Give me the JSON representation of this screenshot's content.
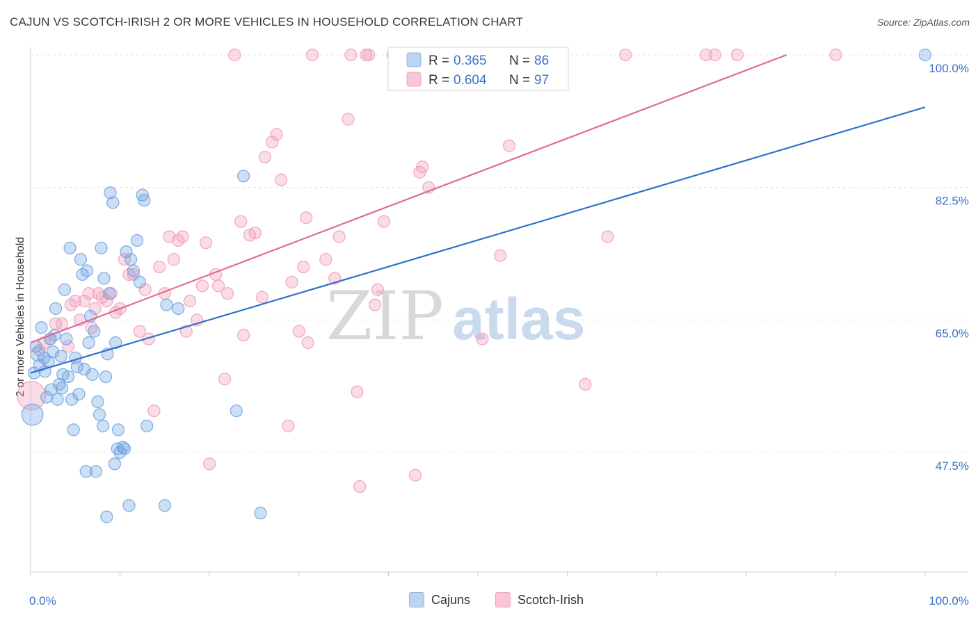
{
  "title": "CAJUN VS SCOTCH-IRISH 2 OR MORE VEHICLES IN HOUSEHOLD CORRELATION CHART",
  "source": "Source: ZipAtlas.com",
  "watermark": {
    "zip": "ZIP",
    "atlas": "atlas"
  },
  "colors": {
    "cajun": "#6fa3e0",
    "cajun_line": "#2f6fcc",
    "scotch": "#f29bb8",
    "scotch_line": "#e06a93",
    "axis_text": "#3a72c8"
  },
  "legend": {
    "cajun": {
      "r_label": "R =",
      "r_value": "0.365",
      "n_label": "N =",
      "n_value": "86"
    },
    "scotch": {
      "r_label": "R =",
      "r_value": "0.604",
      "n_label": "N =",
      "n_value": "97"
    }
  },
  "bottom_legend": {
    "cajun": "Cajuns",
    "scotch": "Scotch-Irish"
  },
  "chart_data": {
    "type": "scatter",
    "title": "CAJUN VS SCOTCH-IRISH 2 OR MORE VEHICLES IN HOUSEHOLD CORRELATION CHART",
    "xlabel": "",
    "ylabel": "2 or more Vehicles in Household",
    "xlim": [
      0,
      100
    ],
    "ylim": [
      31.5,
      101.5
    ],
    "x_tick_labels": [
      "0.0%",
      "100.0%"
    ],
    "y_ticks": [
      47.5,
      65.0,
      82.5,
      100.0
    ],
    "y_tick_labels": [
      "47.5%",
      "65.0%",
      "82.5%",
      "100.0%"
    ],
    "series": [
      {
        "name": "Cajuns",
        "trend": {
          "x": [
            0,
            100
          ],
          "y": [
            58.0,
            93.1
          ]
        },
        "points": [
          [
            0.2,
            52.5,
            1.8
          ],
          [
            0.4,
            58,
            1.0
          ],
          [
            0.6,
            61.5,
            1.0
          ],
          [
            0.8,
            60.5,
            1.2
          ],
          [
            1.0,
            59,
            1.0
          ],
          [
            1.2,
            64,
            1.0
          ],
          [
            1.5,
            60,
            1.0
          ],
          [
            1.6,
            58.2,
            1.0
          ],
          [
            1.8,
            54.8,
            1.0
          ],
          [
            2.0,
            59.5,
            1.0
          ],
          [
            2.2,
            62.5,
            1.0
          ],
          [
            2.3,
            55.8,
            1.0
          ],
          [
            2.5,
            60.8,
            1.0
          ],
          [
            2.7,
            63,
            1.0
          ],
          [
            2.8,
            66.5,
            1.0
          ],
          [
            3.0,
            54.5,
            1.0
          ],
          [
            3.2,
            56.5,
            1.0
          ],
          [
            3.4,
            60.2,
            1.0
          ],
          [
            3.5,
            56,
            1.0
          ],
          [
            3.6,
            57.8,
            1.0
          ],
          [
            3.8,
            69,
            1.0
          ],
          [
            4.0,
            62.5,
            1.0
          ],
          [
            4.2,
            57.5,
            1.0
          ],
          [
            4.4,
            74.5,
            1.0
          ],
          [
            4.6,
            54.5,
            1.0
          ],
          [
            4.8,
            50.5,
            1.0
          ],
          [
            5.0,
            60,
            1.0
          ],
          [
            5.2,
            58.8,
            1.0
          ],
          [
            5.4,
            55.2,
            1.0
          ],
          [
            5.6,
            73,
            1.0
          ],
          [
            5.8,
            71,
            1.0
          ],
          [
            6.0,
            58.5,
            1.0
          ],
          [
            6.2,
            45,
            1.0
          ],
          [
            6.3,
            71.5,
            1.0
          ],
          [
            6.5,
            62,
            1.0
          ],
          [
            6.7,
            65.5,
            1.0
          ],
          [
            6.9,
            57.8,
            1.0
          ],
          [
            7.1,
            63.5,
            1.0
          ],
          [
            7.3,
            45,
            1.0
          ],
          [
            7.5,
            54.2,
            1.0
          ],
          [
            7.7,
            52.5,
            1.0
          ],
          [
            7.9,
            74.5,
            1.0
          ],
          [
            8.1,
            51,
            1.0
          ],
          [
            8.2,
            70.5,
            1.0
          ],
          [
            8.4,
            57.5,
            1.0
          ],
          [
            8.5,
            39,
            1.0
          ],
          [
            8.6,
            60.5,
            1.0
          ],
          [
            8.8,
            68.5,
            1.0
          ],
          [
            8.9,
            81.8,
            1.0
          ],
          [
            9.2,
            80.5,
            1.0
          ],
          [
            9.4,
            46,
            1.0
          ],
          [
            9.5,
            62,
            1.0
          ],
          [
            9.7,
            48,
            1.0
          ],
          [
            9.8,
            50.5,
            1.0
          ],
          [
            10.0,
            47.5,
            1.0
          ],
          [
            10.3,
            48.2,
            1.0
          ],
          [
            10.5,
            48,
            1.0
          ],
          [
            10.7,
            74,
            1.0
          ],
          [
            11.0,
            40.5,
            1.0
          ],
          [
            11.2,
            73,
            1.0
          ],
          [
            11.5,
            71.5,
            1.0
          ],
          [
            11.9,
            75.5,
            1.0
          ],
          [
            12.2,
            70,
            1.0
          ],
          [
            12.5,
            81.5,
            1.0
          ],
          [
            12.7,
            80.8,
            1.0
          ],
          [
            13.0,
            51,
            1.0
          ],
          [
            15.0,
            40.5,
            1.0
          ],
          [
            15.2,
            67,
            1.0
          ],
          [
            16.5,
            66.5,
            1.0
          ],
          [
            23.0,
            53,
            1.0
          ],
          [
            23.8,
            84,
            1.0
          ],
          [
            25.7,
            39.5,
            1.0
          ],
          [
            100,
            100,
            1.0
          ]
        ]
      },
      {
        "name": "Scotch-Irish",
        "trend": {
          "x": [
            0,
            84.5
          ],
          "y": [
            62.0,
            100.0
          ]
        },
        "points": [
          [
            0.1,
            55,
            2.4
          ],
          [
            1.0,
            61,
            1.0
          ],
          [
            1.5,
            62,
            1.0
          ],
          [
            2.2,
            62.5,
            1.0
          ],
          [
            2.8,
            64.5,
            1.0
          ],
          [
            3.5,
            64.5,
            1.0
          ],
          [
            4.2,
            61.5,
            1.0
          ],
          [
            4.5,
            67,
            1.0
          ],
          [
            5.0,
            67.5,
            1.0
          ],
          [
            5.5,
            65,
            1.0
          ],
          [
            6.0,
            67.5,
            1.0
          ],
          [
            6.5,
            68.5,
            1.0
          ],
          [
            6.8,
            64,
            1.0
          ],
          [
            7.2,
            66.5,
            1.0
          ],
          [
            7.6,
            68.5,
            1.0
          ],
          [
            8.0,
            68,
            1.0
          ],
          [
            8.5,
            67.5,
            1.0
          ],
          [
            9.0,
            68.5,
            1.0
          ],
          [
            9.5,
            66,
            1.0
          ],
          [
            10.0,
            66.5,
            1.0
          ],
          [
            10.5,
            73,
            1.0
          ],
          [
            11.0,
            71,
            1.0
          ],
          [
            11.5,
            71,
            1.0
          ],
          [
            12.2,
            63.5,
            1.0
          ],
          [
            12.8,
            69,
            1.0
          ],
          [
            13.2,
            62.5,
            1.0
          ],
          [
            13.8,
            53,
            1.0
          ],
          [
            14.4,
            72,
            1.0
          ],
          [
            15.0,
            68.5,
            1.0
          ],
          [
            15.5,
            76,
            1.0
          ],
          [
            16.0,
            73,
            1.0
          ],
          [
            16.5,
            75.5,
            1.0
          ],
          [
            17.0,
            76,
            1.0
          ],
          [
            17.4,
            63.5,
            1.0
          ],
          [
            17.8,
            67.5,
            1.0
          ],
          [
            18.6,
            65,
            1.0
          ],
          [
            19.2,
            69.5,
            1.0
          ],
          [
            19.6,
            75.2,
            1.0
          ],
          [
            20.0,
            46,
            1.0
          ],
          [
            20.7,
            71,
            1.0
          ],
          [
            21.0,
            69.5,
            1.0
          ],
          [
            21.7,
            57.2,
            1.0
          ],
          [
            22.0,
            68.5,
            1.0
          ],
          [
            22.8,
            100,
            1.0
          ],
          [
            23.5,
            78,
            1.0
          ],
          [
            23.8,
            63,
            1.0
          ],
          [
            24.5,
            76.2,
            1.0
          ],
          [
            25.1,
            76.5,
            1.0
          ],
          [
            25.9,
            68,
            1.0
          ],
          [
            26.2,
            86.5,
            1.0
          ],
          [
            27.0,
            88.5,
            1.0
          ],
          [
            27.5,
            89.5,
            1.0
          ],
          [
            28.0,
            83.5,
            1.0
          ],
          [
            28.8,
            51,
            1.0
          ],
          [
            29.2,
            70,
            1.0
          ],
          [
            30.0,
            63.5,
            1.0
          ],
          [
            30.5,
            72,
            1.0
          ],
          [
            30.8,
            78.5,
            1.0
          ],
          [
            31.0,
            62,
            1.0
          ],
          [
            31.5,
            100,
            1.0
          ],
          [
            33.0,
            73,
            1.0
          ],
          [
            34.0,
            70.5,
            1.0
          ],
          [
            34.5,
            76,
            1.0
          ],
          [
            35.5,
            91.5,
            1.0
          ],
          [
            35.8,
            100,
            1.0
          ],
          [
            36.5,
            55.5,
            1.0
          ],
          [
            36.8,
            43,
            1.0
          ],
          [
            37.5,
            100,
            1.0
          ],
          [
            37.8,
            100,
            1.0
          ],
          [
            38.5,
            67,
            1.0
          ],
          [
            38.8,
            69,
            1.0
          ],
          [
            39.5,
            78,
            1.0
          ],
          [
            40.5,
            100,
            1.0
          ],
          [
            41.0,
            100,
            1.0
          ],
          [
            42.0,
            100,
            1.0
          ],
          [
            43.0,
            44.5,
            1.0
          ],
          [
            43.5,
            84.5,
            1.0
          ],
          [
            43.8,
            85.2,
            1.0
          ],
          [
            44.5,
            82.5,
            1.0
          ],
          [
            50.5,
            62.5,
            1.0
          ],
          [
            52.5,
            73.5,
            1.0
          ],
          [
            53.5,
            88,
            1.0
          ],
          [
            62.0,
            56.5,
            1.0
          ],
          [
            64.5,
            76,
            1.0
          ],
          [
            66.5,
            100,
            1.0
          ],
          [
            75.5,
            100,
            1.0
          ],
          [
            76.5,
            100,
            1.0
          ],
          [
            79.0,
            100,
            1.0
          ],
          [
            90.0,
            100,
            1.0
          ]
        ]
      }
    ]
  }
}
